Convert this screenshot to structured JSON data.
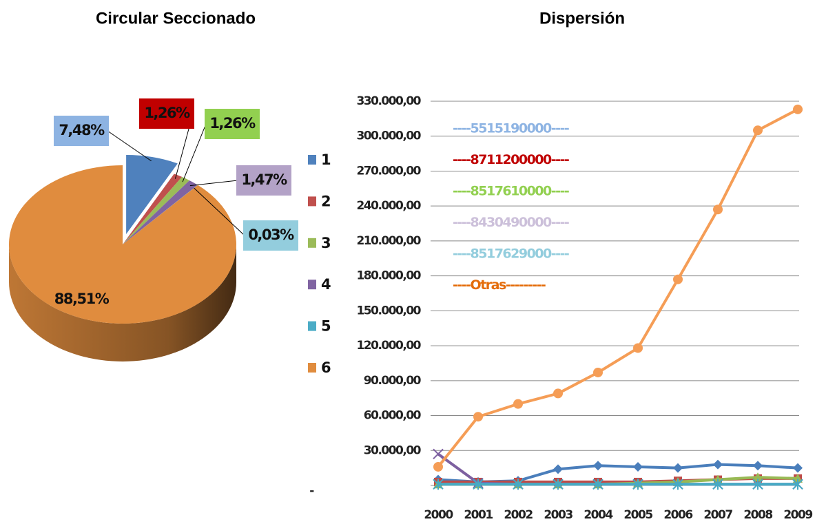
{
  "chart_data": [
    {
      "type": "pie",
      "title": "Circular Seccionado",
      "categories": [
        "1",
        "2",
        "3",
        "4",
        "5",
        "6"
      ],
      "values": [
        7.48,
        1.26,
        1.26,
        1.47,
        0.03,
        88.51
      ],
      "value_labels": [
        "7,48%",
        "1,26%",
        "1,26%",
        "1,47%",
        "0,03%",
        "88,51%"
      ],
      "colors": [
        "#4f81bd",
        "#c0504d",
        "#9bbb59",
        "#8064a2",
        "#4bacc6",
        "#e08c3e"
      ]
    },
    {
      "type": "line",
      "title": "Dispersión",
      "x": [
        "2000",
        "2001",
        "2002",
        "2003",
        "2004",
        "2005",
        "2006",
        "2007",
        "2008",
        "2009"
      ],
      "series": [
        {
          "name": "----5515190000----",
          "color": "#4a7ebb",
          "legend_color": "#8eb4e3",
          "values": [
            5000,
            3000,
            4000,
            14000,
            17000,
            16000,
            15000,
            18000,
            17000,
            15000
          ]
        },
        {
          "name": "----8711200000----",
          "color": "#be4b48",
          "legend_color": "#c00000",
          "values": [
            3000,
            3000,
            3000,
            3000,
            3000,
            3000,
            4000,
            5000,
            6000,
            6000
          ]
        },
        {
          "name": "----8517610000----",
          "color": "#98b954",
          "legend_color": "#92d050",
          "values": [
            1000,
            1000,
            1000,
            1000,
            1000,
            2000,
            3000,
            5000,
            7000,
            6000
          ]
        },
        {
          "name": "----8430490000----",
          "color": "#7d60a0",
          "legend_color": "#ccc0da",
          "values": [
            27000,
            2000,
            1000,
            1000,
            1000,
            1000,
            1000,
            1000,
            1000,
            1000
          ]
        },
        {
          "name": "----8517629000----",
          "color": "#46aac5",
          "legend_color": "#93cddd",
          "values": [
            1000,
            1000,
            1000,
            1000,
            1000,
            1000,
            1000,
            1000,
            1000,
            1000
          ]
        },
        {
          "name": "----Otras---------",
          "color": "#f59d56",
          "legend_color": "#e46c0a",
          "values": [
            16000,
            59000,
            70000,
            79000,
            97000,
            118000,
            177000,
            237000,
            305000,
            323000
          ]
        }
      ],
      "ylim": [
        0,
        330000
      ],
      "yticks": [
        {
          "value": 0,
          "label": "-"
        },
        {
          "value": 30000,
          "label": "30.000,00"
        },
        {
          "value": 60000,
          "label": "60.000,00"
        },
        {
          "value": 90000,
          "label": "90.000,00"
        },
        {
          "value": 120000,
          "label": "120.000,00"
        },
        {
          "value": 150000,
          "label": "150.000,00"
        },
        {
          "value": 180000,
          "label": "180.000,00"
        },
        {
          "value": 210000,
          "label": "210.000,00"
        },
        {
          "value": 240000,
          "label": "240.000,00"
        },
        {
          "value": 270000,
          "label": "270.000,00"
        },
        {
          "value": 300000,
          "label": "300.000,00"
        },
        {
          "value": 330000,
          "label": "330.000,00"
        }
      ],
      "grid": true
    }
  ]
}
